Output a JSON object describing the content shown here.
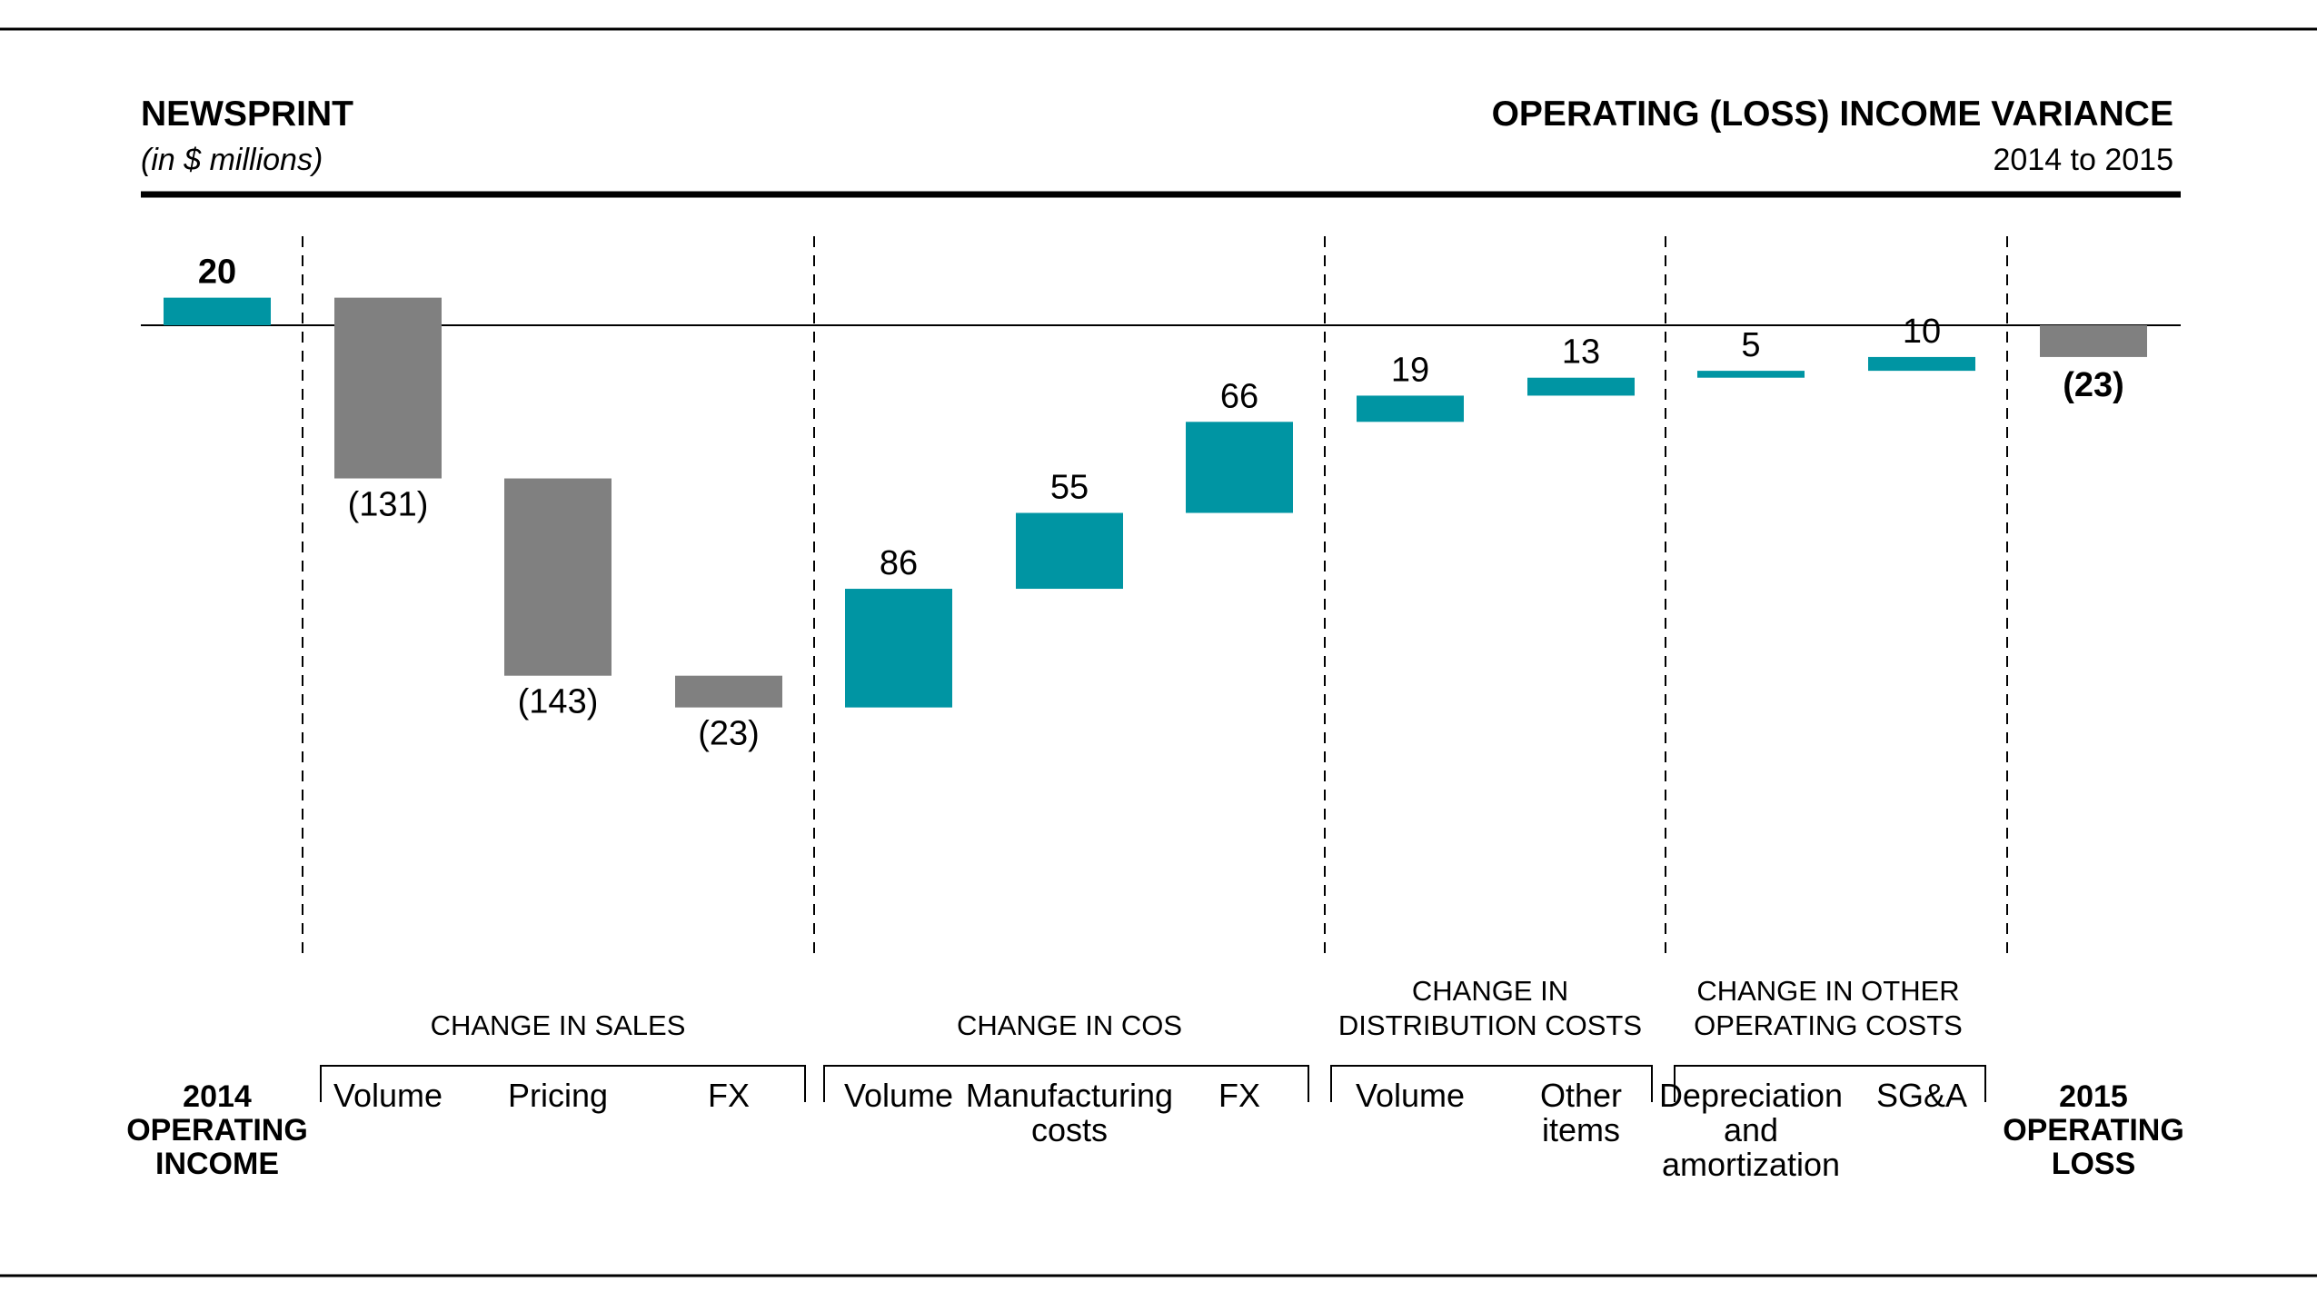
{
  "header": {
    "left_title": "NEWSPRINT",
    "left_subtitle": "(in $ millions)",
    "right_title": "OPERATING (LOSS) INCOME VARIANCE",
    "right_subtitle": "2014 to 2015"
  },
  "colors": {
    "increase": "#0095a3",
    "decrease": "#808080",
    "text": "#111111",
    "rule": "#000000"
  },
  "chart_data": {
    "type": "bar",
    "subtype": "waterfall",
    "title": "OPERATING (LOSS) INCOME VARIANCE",
    "subtitle": "2014 to 2015",
    "unit": "(in $ millions)",
    "start": {
      "label": "2014 OPERATING INCOME",
      "label_lines": [
        "2014",
        "OPERATING",
        "INCOME"
      ],
      "value": 20,
      "value_label": "20"
    },
    "end": {
      "label": "2015 OPERATING LOSS",
      "label_lines": [
        "2015",
        "OPERATING",
        "LOSS"
      ],
      "value": -23,
      "value_label": "(23)"
    },
    "groups": [
      {
        "label_lines": [
          "CHANGE IN SALES"
        ],
        "items": [
          {
            "label_lines": [
              "Volume"
            ],
            "value": -131,
            "value_label": "(131)"
          },
          {
            "label_lines": [
              "Pricing"
            ],
            "value": -143,
            "value_label": "(143)"
          },
          {
            "label_lines": [
              "FX"
            ],
            "value": -23,
            "value_label": "(23)"
          }
        ]
      },
      {
        "label_lines": [
          "CHANGE IN COS"
        ],
        "items": [
          {
            "label_lines": [
              "Volume"
            ],
            "value": 86,
            "value_label": "86"
          },
          {
            "label_lines": [
              "Manufacturing",
              "costs"
            ],
            "value": 55,
            "value_label": "55"
          },
          {
            "label_lines": [
              "FX"
            ],
            "value": 66,
            "value_label": "66"
          }
        ]
      },
      {
        "label_lines": [
          "CHANGE IN",
          "DISTRIBUTION COSTS"
        ],
        "items": [
          {
            "label_lines": [
              "Volume"
            ],
            "value": 19,
            "value_label": "19"
          },
          {
            "label_lines": [
              "Other",
              "items"
            ],
            "value": 13,
            "value_label": "13"
          }
        ]
      },
      {
        "label_lines": [
          "CHANGE IN OTHER",
          "OPERATING COSTS"
        ],
        "items": [
          {
            "label_lines": [
              "Depreciation",
              "and",
              "amortization"
            ],
            "value": 5,
            "value_label": "5"
          },
          {
            "label_lines": [
              "SG&A"
            ],
            "value": 10,
            "value_label": "10"
          }
        ]
      }
    ],
    "ylim": [
      -290,
      45
    ],
    "grid": false,
    "legend": "none"
  }
}
